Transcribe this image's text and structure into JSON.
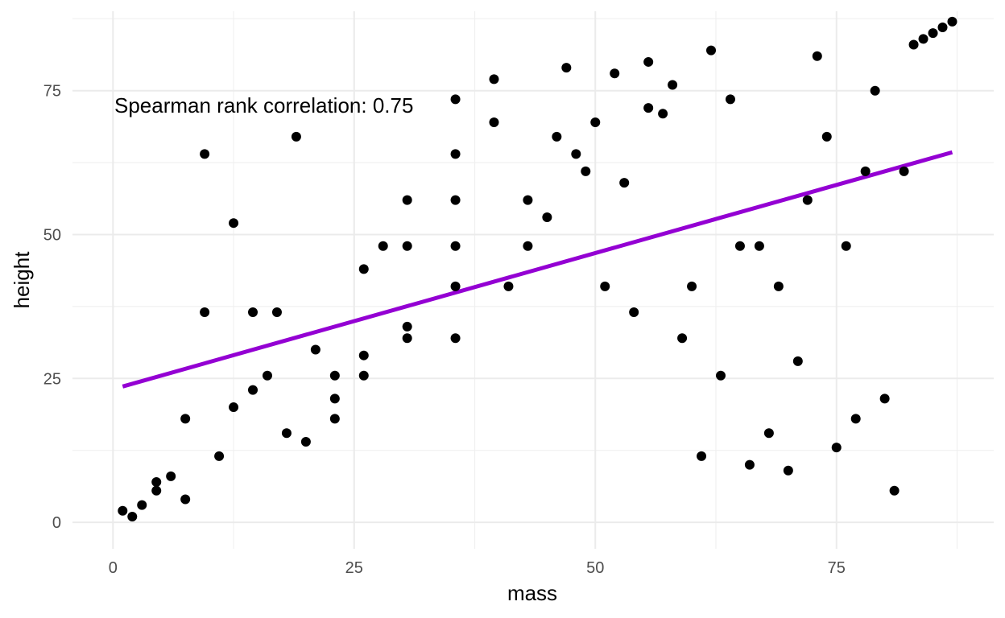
{
  "chart_data": {
    "type": "scatter",
    "title": "",
    "xlabel": "mass",
    "ylabel": "height",
    "xlim": [
      -4.2,
      91.3
    ],
    "ylim": [
      -4.6,
      88.8
    ],
    "x_ticks": [
      0,
      25,
      50,
      75
    ],
    "y_ticks": [
      0,
      25,
      50,
      75
    ],
    "x_minor": [
      12.5,
      37.5,
      62.5,
      87.5
    ],
    "y_minor": [
      12.5,
      37.5,
      62.5,
      87.5
    ],
    "grid": true,
    "legend": "none",
    "annotation": "Spearman rank correlation: 0.75",
    "fit_line": {
      "color": "#9400D3",
      "points": [
        [
          1,
          23.6
        ],
        [
          87,
          64.3
        ]
      ]
    },
    "point_color": "#000000",
    "points": [
      [
        1,
        2
      ],
      [
        2,
        1
      ],
      [
        3,
        3
      ],
      [
        4.5,
        5.5
      ],
      [
        4.5,
        7
      ],
      [
        6,
        8
      ],
      [
        7.5,
        4
      ],
      [
        7.5,
        18
      ],
      [
        9.5,
        64
      ],
      [
        9.5,
        36.5
      ],
      [
        11,
        11.5
      ],
      [
        12.5,
        52
      ],
      [
        12.5,
        20
      ],
      [
        14.5,
        36.5
      ],
      [
        14.5,
        23
      ],
      [
        16,
        25.5
      ],
      [
        17,
        36.5
      ],
      [
        18,
        15.5
      ],
      [
        19,
        67
      ],
      [
        20,
        14
      ],
      [
        21,
        30
      ],
      [
        23,
        25.5
      ],
      [
        23,
        21.5
      ],
      [
        23,
        18
      ],
      [
        26,
        44
      ],
      [
        26,
        29
      ],
      [
        26,
        25.5
      ],
      [
        28,
        48
      ],
      [
        30.5,
        56
      ],
      [
        30.5,
        48
      ],
      [
        30.5,
        34
      ],
      [
        30.5,
        32
      ],
      [
        35.5,
        73.5
      ],
      [
        35.5,
        64
      ],
      [
        35.5,
        56
      ],
      [
        35.5,
        48
      ],
      [
        35.5,
        41
      ],
      [
        35.5,
        32
      ],
      [
        39.5,
        77
      ],
      [
        39.5,
        69.5
      ],
      [
        41,
        41
      ],
      [
        43,
        56
      ],
      [
        43,
        48
      ],
      [
        45,
        53
      ],
      [
        46,
        67
      ],
      [
        47,
        79
      ],
      [
        48,
        64
      ],
      [
        49,
        61
      ],
      [
        50,
        69.5
      ],
      [
        51,
        41
      ],
      [
        52,
        78
      ],
      [
        53,
        59
      ],
      [
        54,
        36.5
      ],
      [
        55.5,
        80
      ],
      [
        55.5,
        72
      ],
      [
        57,
        71
      ],
      [
        58,
        76
      ],
      [
        59,
        32
      ],
      [
        60,
        41
      ],
      [
        61,
        11.5
      ],
      [
        62,
        82
      ],
      [
        63,
        25.5
      ],
      [
        64,
        73.5
      ],
      [
        65,
        48
      ],
      [
        66,
        10
      ],
      [
        67,
        48
      ],
      [
        68,
        15.5
      ],
      [
        69,
        41
      ],
      [
        70,
        9
      ],
      [
        71,
        28
      ],
      [
        72,
        56
      ],
      [
        73,
        81
      ],
      [
        74,
        67
      ],
      [
        75,
        13
      ],
      [
        76,
        48
      ],
      [
        77,
        18
      ],
      [
        78,
        61
      ],
      [
        79,
        75
      ],
      [
        80,
        21.5
      ],
      [
        81,
        5.5
      ],
      [
        82,
        61
      ],
      [
        83,
        83
      ],
      [
        84,
        84
      ],
      [
        85,
        85
      ],
      [
        86,
        86
      ],
      [
        87,
        87
      ]
    ]
  }
}
